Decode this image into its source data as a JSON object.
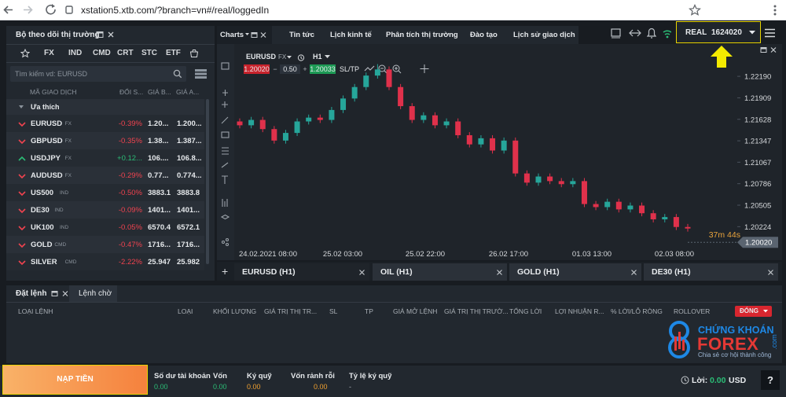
{
  "browser": {
    "url": "xstation5.xtb.com/?branch=vn#/real/loggedIn"
  },
  "watchlist": {
    "title": "Bộ theo dõi thị trường",
    "tabs": [
      "FX",
      "IND",
      "CMD",
      "CRT",
      "STC",
      "ETF"
    ],
    "search_placeholder": "Tìm kiếm vd: EURUSD",
    "columns": [
      "MÃ GIAO DỊCH",
      "ĐỔI S...",
      "GIÁ B...",
      "GIÁ A..."
    ],
    "group": "Ưa thích",
    "rows": [
      [
        "EURUSD",
        "FX",
        "-0.39%",
        "1.20...",
        "1.200..."
      ],
      [
        "GBPUSD",
        "FX",
        "-0.35%",
        "1.38...",
        "1.387..."
      ],
      [
        "USDJPY",
        "FX",
        "+0.12...",
        "106....",
        "106.8..."
      ],
      [
        "AUDUSD",
        "FX",
        "-0.29%",
        "0.77...",
        "0.774..."
      ],
      [
        "US500",
        "IND",
        "-0.50%",
        "3883.1",
        "3883.8"
      ],
      [
        "DE30",
        "IND",
        "-0.09%",
        "1401...",
        "1401..."
      ],
      [
        "UK100",
        "IND",
        "-0.05%",
        "6570.4",
        "6572.1"
      ],
      [
        "GOLD",
        "CMD",
        "-0.47%",
        "1716...",
        "1716..."
      ],
      [
        "SILVER",
        "CMD",
        "-2.22%",
        "25.947",
        "25.982"
      ]
    ]
  },
  "top_tabs": [
    "Charts",
    "Tin tức",
    "Lịch kinh tế",
    "Phân tích thị trường",
    "Đào tạo",
    "Lịch sử giao dịch"
  ],
  "account": {
    "type": "REAL",
    "number": "1624020"
  },
  "chart_toolbar": {
    "symbol": "EURUSD",
    "market": "FX",
    "interval": "H1",
    "sell": "1.20020",
    "volume": "0.50",
    "buy": "1.20033",
    "sltp": "SL/TP"
  },
  "chart": {
    "type": "candlestick",
    "open": [
      1.216,
      1.2155,
      1.2162,
      1.215,
      1.2135,
      1.2145,
      1.216,
      1.2165,
      1.2162,
      1.2175,
      1.219,
      1.2205,
      1.222,
      1.2228,
      1.2205,
      1.218,
      1.2162,
      1.2168,
      1.2155,
      1.216,
      1.2142,
      1.213,
      1.2138,
      1.2122,
      1.2135,
      1.2092,
      1.208,
      1.2088,
      1.2082,
      1.2078,
      1.2082,
      1.2052,
      1.2048,
      1.2055,
      1.2045,
      1.205,
      1.204,
      1.2032,
      1.2035,
      1.2022
    ],
    "high": [
      1.2164,
      1.2166,
      1.2166,
      1.2154,
      1.2149,
      1.2164,
      1.2169,
      1.2169,
      1.2179,
      1.2194,
      1.2209,
      1.2224,
      1.2235,
      1.2232,
      1.2209,
      1.2184,
      1.2172,
      1.2172,
      1.2164,
      1.2164,
      1.2146,
      1.2142,
      1.2142,
      1.2139,
      1.2139,
      1.2096,
      1.2092,
      1.2092,
      1.2086,
      1.2086,
      1.2086,
      1.2056,
      1.2059,
      1.2059,
      1.2054,
      1.2054,
      1.2044,
      1.2039,
      1.2039,
      1.2026
    ],
    "low": [
      1.2151,
      1.2151,
      1.2146,
      1.2131,
      1.2131,
      1.2141,
      1.2156,
      1.2158,
      1.2158,
      1.2171,
      1.2186,
      1.2201,
      1.2216,
      1.2201,
      1.2176,
      1.2158,
      1.2158,
      1.2151,
      1.2151,
      1.2138,
      1.2126,
      1.2126,
      1.2118,
      1.2118,
      1.2088,
      1.2076,
      1.2076,
      1.2078,
      1.2074,
      1.2074,
      1.2048,
      1.2044,
      1.2044,
      1.2041,
      1.2041,
      1.2036,
      1.2028,
      1.2028,
      1.2018,
      1.2016
    ],
    "close": [
      1.2155,
      1.2162,
      1.215,
      1.2135,
      1.2145,
      1.216,
      1.2165,
      1.2162,
      1.2175,
      1.219,
      1.2205,
      1.222,
      1.2228,
      1.2205,
      1.218,
      1.2162,
      1.2168,
      1.2155,
      1.216,
      1.2142,
      1.213,
      1.2138,
      1.2122,
      1.2135,
      1.2092,
      1.208,
      1.2088,
      1.2082,
      1.2078,
      1.2082,
      1.2052,
      1.2048,
      1.2055,
      1.2045,
      1.205,
      1.204,
      1.2032,
      1.2035,
      1.2022,
      1.202
    ],
    "up_color": "#26a69a",
    "down_color": "#e0314b",
    "ylim": [
      1.1995,
      1.2252
    ],
    "yticks": [
      {
        "value": 1.2219,
        "label": "1.22190"
      },
      {
        "value": 1.21909,
        "label": "1.21909"
      },
      {
        "value": 1.21628,
        "label": "1.21628"
      },
      {
        "value": 1.21347,
        "label": "1.21347"
      },
      {
        "value": 1.21067,
        "label": "1.21067"
      },
      {
        "value": 1.20786,
        "label": "1.20786"
      },
      {
        "value": 1.20505,
        "label": "1.20505"
      },
      {
        "value": 1.20224,
        "label": "1.20224"
      }
    ],
    "xtick_labels": [
      "24.02.2021 08:00",
      "25.02 03:00",
      "25.02 22:00",
      "26.02 17:00",
      "01.03 13:00",
      "02.03 08:00"
    ],
    "last_price": {
      "value": 1.2002,
      "label": "1.20020"
    },
    "countdown": "37m 44s"
  },
  "chart_tabs": [
    "EURUSD (H1)",
    "OIL (H1)",
    "GOLD (H1)",
    "DE30 (H1)"
  ],
  "orders": {
    "tabs": [
      "Đặt lệnh",
      "Lệnh chờ"
    ],
    "columns": [
      "LOẠI LỆNH",
      "LOẠI",
      "KHỐI LƯỢNG",
      "GIÁ TRỊ THỊ TR...",
      "SL",
      "TP",
      "GIÁ MỞ LỆNH",
      "GIÁ TRỊ THỊ TRƯỜ...",
      "TỔNG LỜI",
      "LỢI NHUẬN R...",
      "% LỜI/LỖ RÒNG",
      "ROLLOVER"
    ],
    "close_button": "ĐÓNG"
  },
  "logo": {
    "line1": "CHỨNG KHOÁN",
    "line2": "FOREX",
    "domain": ".com",
    "tagline": "Chia sẻ cơ hội thành công"
  },
  "footer": {
    "deposit": "NẠP TIỀN",
    "stats": [
      {
        "label": "Số dư tài khoản",
        "value": "0.00"
      },
      {
        "label": "Vốn",
        "value": "0.00"
      },
      {
        "label": "Ký quỹ",
        "value": "0.00"
      },
      {
        "label": "Vốn rảnh rỗi",
        "value": "0.00"
      },
      {
        "label": "Tỷ lệ ký quỹ",
        "value": "-"
      }
    ],
    "profit_label": "Lời:",
    "profit_value": "0.00",
    "currency": "USD",
    "help": "?"
  }
}
